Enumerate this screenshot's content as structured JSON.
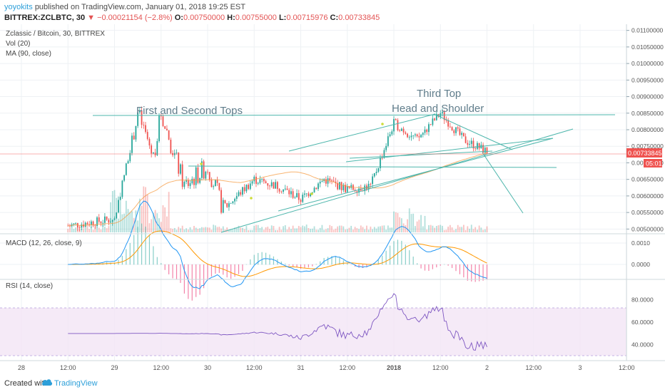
{
  "header": {
    "author": "yoyokits",
    "published": "published on TradingView.com, January 01, 2018 19:25 EST",
    "symbol": "BITTREX:ZCLBTC, 30",
    "change": "▼ −0.00021154 (−2.8%)",
    "o_label": "O:",
    "o_value": "0.00750000",
    "h_label": "H:",
    "h_value": "0.00755000",
    "l_label": "L:",
    "l_value": "0.00715976",
    "c_label": "C:",
    "c_value": "0.00733845"
  },
  "legend": {
    "main": "Zclassic / Bitcoin, 30, BITTREX",
    "vol": "Vol (20)",
    "ma": "MA (90, close)",
    "macd": "MACD (12, 26, close, 9)",
    "rsi": "RSI (14, close)"
  },
  "annotations": {
    "first_second": "First and Second Tops",
    "third_top": "Third Top",
    "head_shoulder": "Head and Shoulder"
  },
  "price_tag": {
    "value": "0.00733845",
    "timer": "05:01"
  },
  "footer": {
    "created": "Created with",
    "brand": "TradingView"
  },
  "colors": {
    "up": "#26a69a",
    "down": "#ef5350",
    "trend": "#4db6ac",
    "ma": "#f59b42",
    "macd": "#2196f3",
    "signal": "#ff9800",
    "rsi": "#7e57c2",
    "rsi_band": "#f3e5f5",
    "accent": "#2d9fd9"
  },
  "chart_data": [
    {
      "type": "candlestick",
      "title": "Zclassic / Bitcoin, 30, BITTREX",
      "y_ticks": [
        "0.01100000",
        "0.01050000",
        "0.01000000",
        "0.00950000",
        "0.00900000",
        "0.00850000",
        "0.00800000",
        "0.00750000",
        "0.00700000",
        "0.00650000",
        "0.00600000",
        "0.00550000",
        "0.00500000"
      ],
      "ylim": [
        0.0049,
        0.0111
      ],
      "x_ticks": [
        "28",
        "12:00",
        "29",
        "12:00",
        "30",
        "12:00",
        "31",
        "12:00",
        "2018",
        "12:00",
        "2",
        "12:00",
        "3",
        "12:00"
      ],
      "approx_close_path": [
        {
          "x": "28 12:00",
          "y": 0.0051
        },
        {
          "x": "29 00:00",
          "y": 0.0053
        },
        {
          "x": "29 06:00",
          "y": 0.0085
        },
        {
          "x": "29 10:00",
          "y": 0.0072
        },
        {
          "x": "29 12:00",
          "y": 0.0085
        },
        {
          "x": "29 18:00",
          "y": 0.0063
        },
        {
          "x": "30 00:00",
          "y": 0.0069
        },
        {
          "x": "30 04:00",
          "y": 0.0056
        },
        {
          "x": "30 12:00",
          "y": 0.0065
        },
        {
          "x": "30 18:00",
          "y": 0.0063
        },
        {
          "x": "31 00:00",
          "y": 0.0059
        },
        {
          "x": "31 06:00",
          "y": 0.0065
        },
        {
          "x": "31 12:00",
          "y": 0.0062
        },
        {
          "x": "31 18:00",
          "y": 0.0063
        },
        {
          "x": "1 00:00",
          "y": 0.0082
        },
        {
          "x": "1 06:00",
          "y": 0.0077
        },
        {
          "x": "1 12:00",
          "y": 0.0085
        },
        {
          "x": "1 18:00",
          "y": 0.0077
        },
        {
          "x": "2 00:00",
          "y": 0.00733845
        }
      ],
      "ma_label": "MA (90, close)",
      "volume_label": "Vol (20)"
    },
    {
      "type": "line",
      "title": "MACD (12, 26, close, 9)",
      "y_ticks": [
        "0.0010",
        "0.0000"
      ],
      "series": [
        {
          "name": "MACD"
        },
        {
          "name": "Signal"
        }
      ]
    },
    {
      "type": "line",
      "title": "RSI (14, close)",
      "y_ticks": [
        "80.0000",
        "60.0000",
        "40.0000"
      ],
      "bands": [
        70,
        30
      ],
      "ylim": [
        27,
        97
      ]
    }
  ]
}
